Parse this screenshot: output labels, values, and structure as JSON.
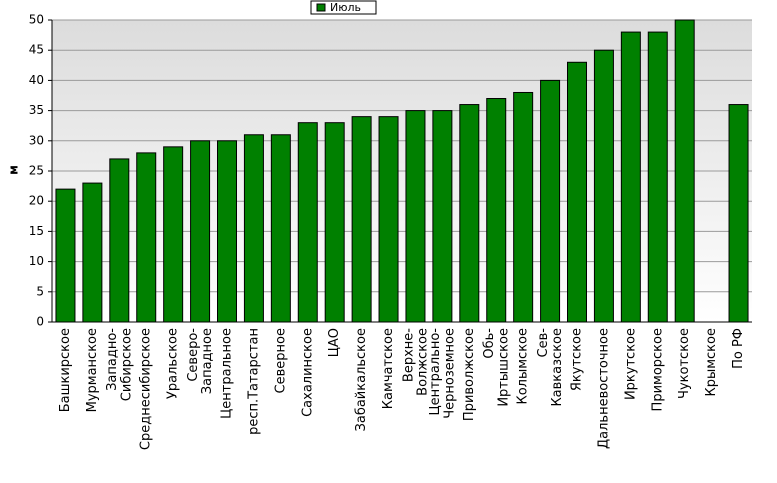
{
  "chart_data": {
    "type": "bar",
    "y_label": "м",
    "categories": [
      "Башкирское",
      "Мурманское",
      "Западно-\nСибирское",
      "Среднесибирское",
      "Уральское",
      "Северо-\nЗападное",
      "Центральное",
      "респ.Татарстан",
      "Северное",
      "Сахалинское",
      "ЦАО",
      "Забайкальское",
      "Камчатское",
      "Верхне-\nВолжское",
      "Центрально-\nЧерноземное",
      "Приволжское",
      "Обь-\nИртышское",
      "Колымское",
      "Сев-\nКавказское",
      "Якутское",
      "Дальневосточное",
      "Иркутское",
      "Приморское",
      "Чукотское",
      "Крымское",
      "По РФ"
    ],
    "series": [
      {
        "name": "Июль",
        "color": "#008000",
        "values": [
          22,
          23,
          27,
          28,
          29,
          30,
          30,
          31,
          31,
          33,
          33,
          34,
          34,
          35,
          35,
          36,
          37,
          38,
          40,
          43,
          45,
          48,
          48,
          50,
          null,
          36
        ]
      }
    ],
    "ylim": [
      0,
      50
    ],
    "yticks": [
      0,
      5,
      10,
      15,
      20,
      25,
      30,
      35,
      40,
      45,
      50
    ],
    "grid": true,
    "legend": "top"
  }
}
